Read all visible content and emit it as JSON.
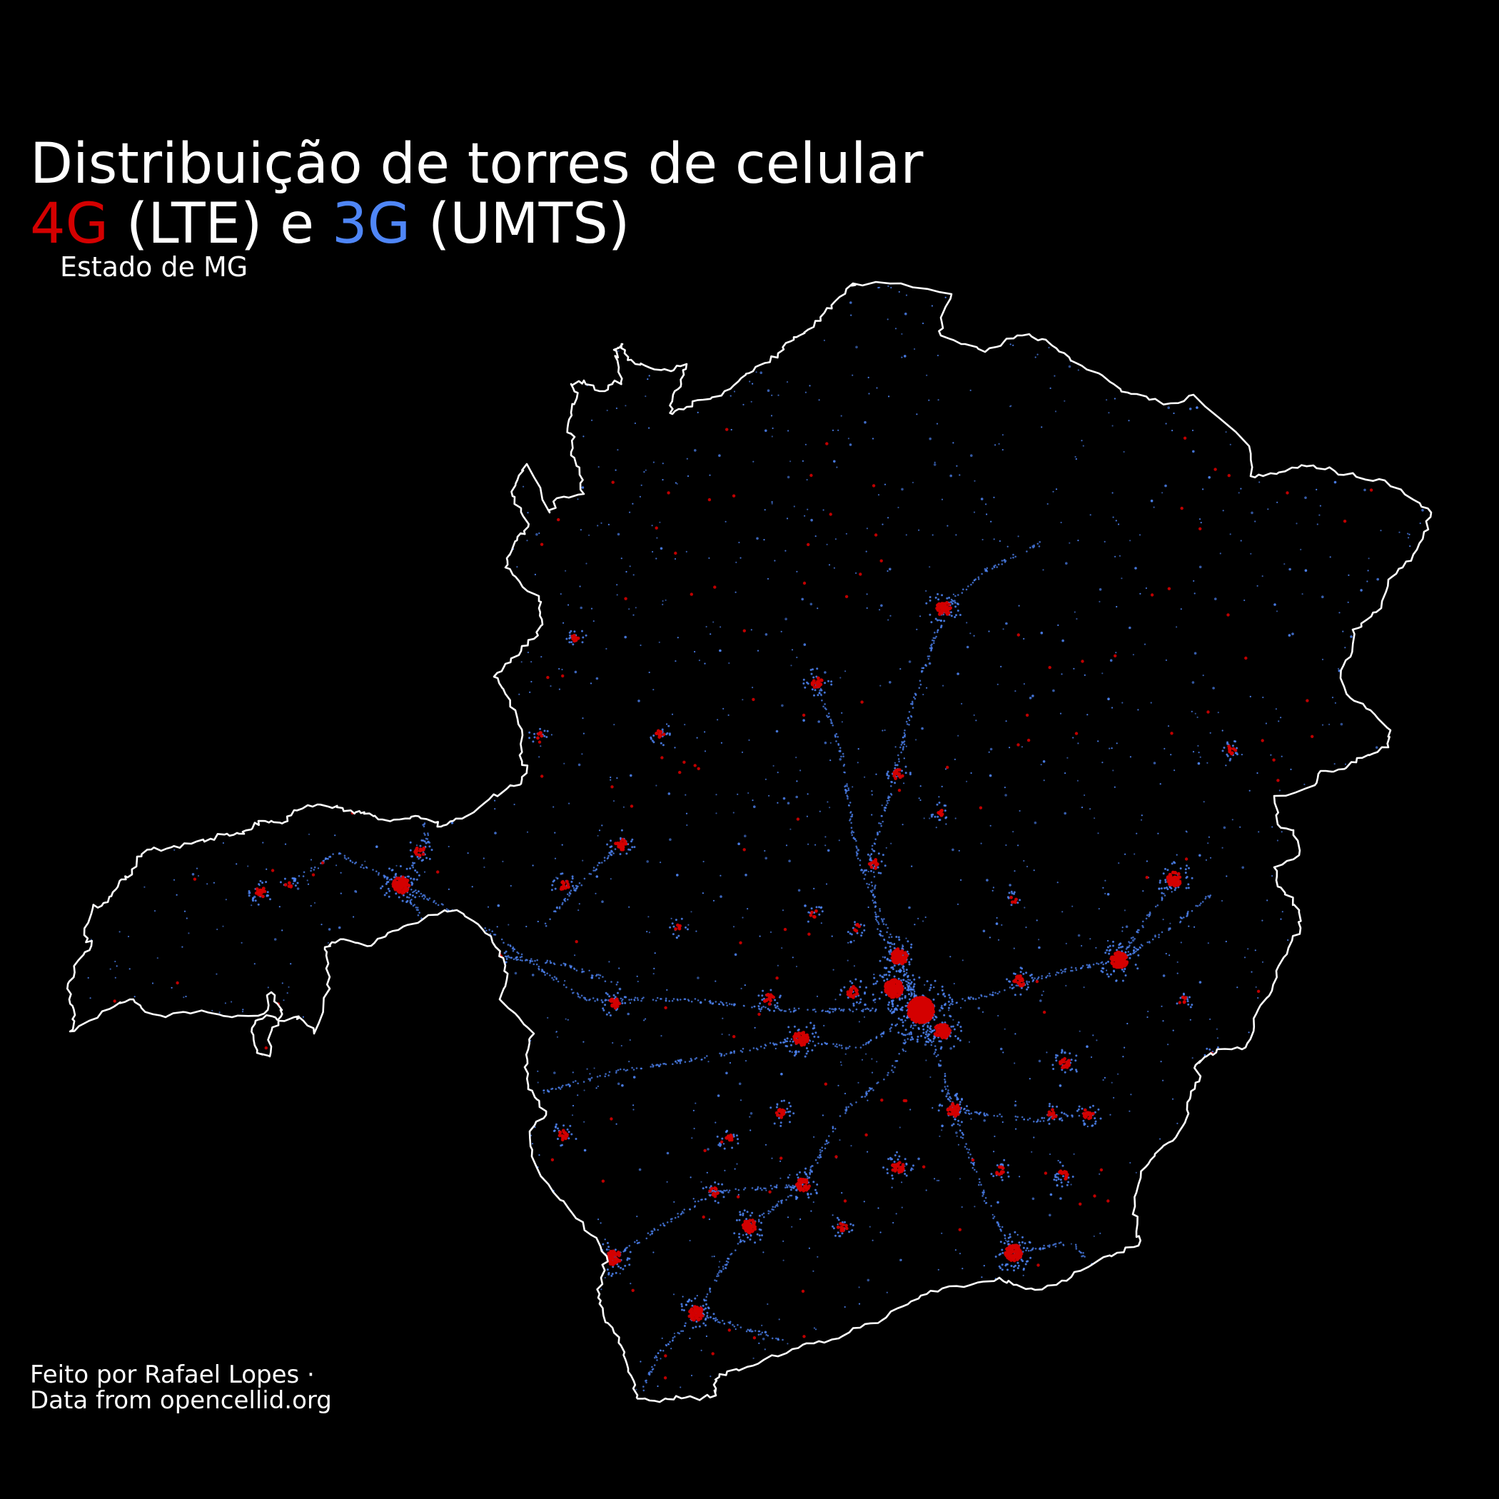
{
  "title": {
    "line1": "Distribuição de torres de celular",
    "tag_4g": "4G",
    "text_lte": " (LTE) e ",
    "tag_3g": "3G",
    "text_umts": " (UMTS)"
  },
  "subtitle": "Estado de MG",
  "caption": {
    "line1": "Feito por Rafael Lopes ·",
    "line2": "Data from opencellid.org"
  },
  "colors": {
    "background": "#000000",
    "border": "#ffffff",
    "lte_4g": "#d40000",
    "umts_3g": "#4f86f7"
  },
  "legend": [
    {
      "label": "4G",
      "technology": "LTE",
      "color": "#d40000"
    },
    {
      "label": "3G",
      "technology": "UMTS",
      "color": "#4f86f7"
    }
  ]
}
